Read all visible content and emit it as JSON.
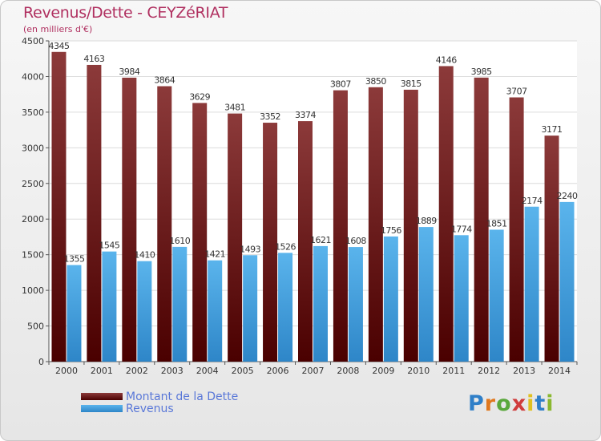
{
  "title": "Revenus/Dette - CEYZéRIAT",
  "subtitle": "(en milliers d'€)",
  "logo": "Proxiti",
  "colors": {
    "title": "#b03060",
    "dette_top": "#8c3a3a",
    "dette_bottom": "#4a0000",
    "revenus_top": "#5ab4ec",
    "revenus_bottom": "#2e86c8",
    "legend_text": "#5a78d8"
  },
  "chart_data": {
    "type": "bar",
    "categories": [
      "2000",
      "2001",
      "2002",
      "2003",
      "2004",
      "2005",
      "2006",
      "2007",
      "2008",
      "2009",
      "2010",
      "2011",
      "2012",
      "2013",
      "2014"
    ],
    "series": [
      {
        "name": "Montant de la Dette",
        "values": [
          4345,
          4163,
          3984,
          3864,
          3629,
          3481,
          3352,
          3374,
          3807,
          3850,
          3815,
          4146,
          3985,
          3707,
          3171
        ]
      },
      {
        "name": "Revenus",
        "values": [
          1355,
          1545,
          1410,
          1610,
          1421,
          1493,
          1526,
          1621,
          1608,
          1756,
          1889,
          1774,
          1851,
          2174,
          2240
        ]
      }
    ],
    "ylim": [
      0,
      4500
    ],
    "yticks": [
      0,
      500,
      1000,
      1500,
      2000,
      2500,
      3000,
      3500,
      4000,
      4500
    ],
    "grid": true,
    "legend_position": "bottom-left"
  }
}
